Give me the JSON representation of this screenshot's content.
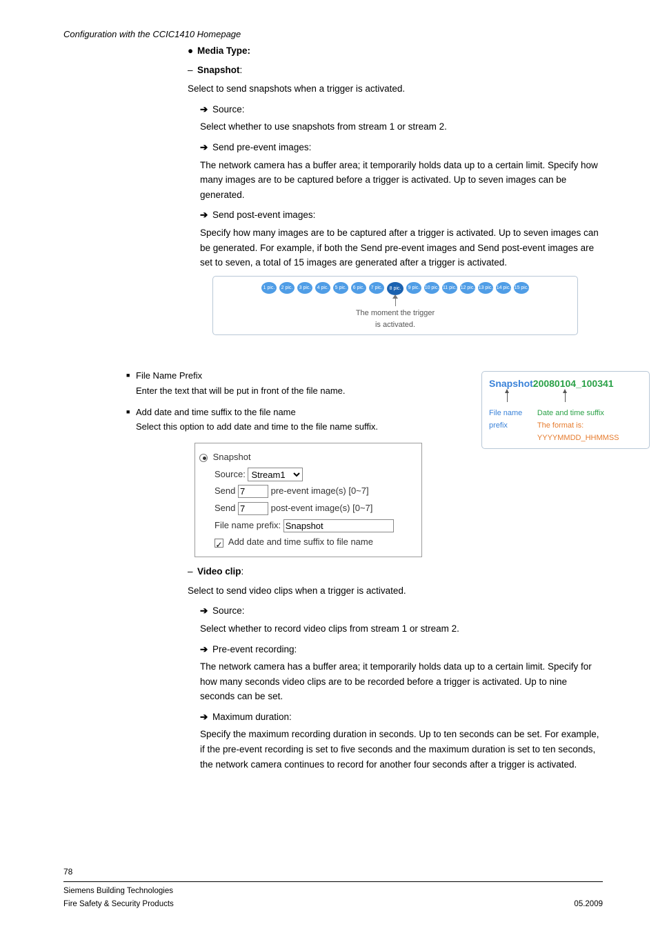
{
  "header": {
    "section": "Configuration with the CCIC1410 Homepage"
  },
  "main": {
    "mediaType": "Media Type:",
    "snapshot": {
      "title": "Snapshot",
      "intro": "Select to send snapshots when a trigger is activated.",
      "source": {
        "label": "Source:",
        "desc": "Select whether to use snapshots from stream 1 or stream 2."
      },
      "preEvent": {
        "label": "Send pre-event images:",
        "desc": "The network camera has a buffer area; it temporarily holds data up to a certain limit. Specify how many images are to be captured before a trigger is activated. Up to seven images can be generated."
      },
      "postEvent": {
        "label": "Send post-event images:",
        "desc": "Specify how many images are to be captured after a trigger is activated. Up to seven images can be generated. For example, if both the Send pre-event images and Send post-event images are set to seven, a total of 15 images are generated after a trigger is activated."
      }
    },
    "trigger": {
      "pics": [
        "1 pic.",
        "2 pic.",
        "3 pic.",
        "4 pic.",
        "5 pic.",
        "6 pic.",
        "7 pic.",
        "8 pic.",
        "9 pic.",
        "10 pic.",
        "11 pic.",
        "12 pic.",
        "13 pic.",
        "14 pic.",
        "15 pic."
      ],
      "activeIndex": 7,
      "line1": "The moment the trigger",
      "line2": "is activated."
    },
    "fileNamePrefix": {
      "title": "File Name Prefix",
      "desc": "Enter the text that will be put in front of the file name."
    },
    "addSuffix": {
      "title": "Add date and time suffix to the file name",
      "desc": "Select this option to add date and time to the file name suffix."
    },
    "prefixBox": {
      "part1": "Snapshot",
      "part2": "20080104_100341",
      "label1": "File name prefix",
      "label2": "Date and time suffix",
      "label3": "The format is: YYYYMMDD_HHMMSS"
    },
    "snapshotPanel": {
      "radio": "Snapshot",
      "sourceLabel": "Source:",
      "sourceValue": "Stream1",
      "send1Label": "Send",
      "send1Value": "7",
      "send1Tail": "pre-event image(s) [0~7]",
      "send2Label": "Send",
      "send2Value": "7",
      "send2Tail": "post-event image(s) [0~7]",
      "prefixLabel": "File name prefix:",
      "prefixValue": "Snapshot",
      "checkLabel": "Add date and time suffix to file name"
    },
    "videoClip": {
      "title": "Video clip",
      "intro": "Select to send video clips when a trigger is activated.",
      "source": {
        "label": "Source:",
        "desc": "Select whether to record video clips from stream 1 or stream 2."
      },
      "preEvent": {
        "label": "Pre-event recording:",
        "desc": "The network camera has a buffer area; it temporarily holds data up to a certain limit. Specify for how many seconds video clips are to be recorded before a trigger is activated. Up to nine seconds can be set."
      },
      "maxDur": {
        "label": "Maximum duration:",
        "desc": "Specify the maximum recording duration in seconds. Up to ten seconds can be set. For example, if the pre-event recording is set to five seconds and the maximum duration is set to ten seconds, the network camera continues to record for another four seconds after a trigger is activated."
      }
    }
  },
  "footer": {
    "page": "78",
    "company": "Siemens Building Technologies",
    "dept": "Fire Safety & Security Products",
    "date": "05.2009"
  },
  "colors": {
    "borderBox": "#b8c7d6",
    "picBlue": "#4f9de6",
    "picBlueActive": "#1b62b0",
    "blue": "#3a82d8",
    "green": "#2aa147",
    "orange": "#e67b2d"
  }
}
